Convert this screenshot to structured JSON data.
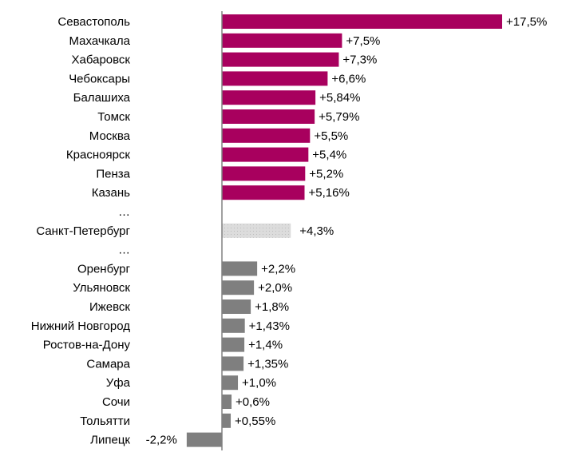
{
  "chart_data": {
    "type": "bar",
    "orientation": "horizontal",
    "title": "",
    "xlabel": "",
    "ylabel": "",
    "xlim": [
      -2.2,
      17.5
    ],
    "grid": false,
    "colors": {
      "top": "#A8005E",
      "bottom": "#7F7F7F",
      "highlight": "#D9D9D9",
      "axis": "#808080"
    },
    "rows": [
      {
        "category": "Севастополь",
        "value": 17.5,
        "label": "+17,5%",
        "group": "top"
      },
      {
        "category": "Махачкала",
        "value": 7.5,
        "label": "+7,5%",
        "group": "top"
      },
      {
        "category": "Хабаровск",
        "value": 7.3,
        "label": "+7,3%",
        "group": "top"
      },
      {
        "category": "Чебоксары",
        "value": 6.6,
        "label": "+6,6%",
        "group": "top"
      },
      {
        "category": "Балашиха",
        "value": 5.84,
        "label": "+5,84%",
        "group": "top"
      },
      {
        "category": "Томск",
        "value": 5.79,
        "label": "+5,79%",
        "group": "top"
      },
      {
        "category": "Москва",
        "value": 5.5,
        "label": "+5,5%",
        "group": "top"
      },
      {
        "category": "Красноярск",
        "value": 5.4,
        "label": "+5,4%",
        "group": "top"
      },
      {
        "category": "Пенза",
        "value": 5.2,
        "label": "+5,2%",
        "group": "top"
      },
      {
        "category": "Казань",
        "value": 5.16,
        "label": "+5,16%",
        "group": "top"
      },
      {
        "category": "…",
        "value": null,
        "label": "",
        "group": "gap"
      },
      {
        "category": "Санкт-Петербург",
        "value": 4.3,
        "label": "+4,3%",
        "group": "highlight"
      },
      {
        "category": "…",
        "value": null,
        "label": "",
        "group": "gap"
      },
      {
        "category": "Оренбург",
        "value": 2.2,
        "label": "+2,2%",
        "group": "bottom"
      },
      {
        "category": "Ульяновск",
        "value": 2.0,
        "label": "+2,0%",
        "group": "bottom"
      },
      {
        "category": "Ижевск",
        "value": 1.8,
        "label": "+1,8%",
        "group": "bottom"
      },
      {
        "category": "Нижний Новгород",
        "value": 1.43,
        "label": "+1,43%",
        "group": "bottom"
      },
      {
        "category": "Ростов-на-Дону",
        "value": 1.4,
        "label": "+1,4%",
        "group": "bottom"
      },
      {
        "category": "Самара",
        "value": 1.35,
        "label": "+1,35%",
        "group": "bottom"
      },
      {
        "category": "Уфа",
        "value": 1.0,
        "label": "+1,0%",
        "group": "bottom"
      },
      {
        "category": "Сочи",
        "value": 0.6,
        "label": "+0,6%",
        "group": "bottom"
      },
      {
        "category": "Тольятти",
        "value": 0.55,
        "label": "+0,55%",
        "group": "bottom"
      },
      {
        "category": "Липецк",
        "value": -2.2,
        "label": "-2,2%",
        "group": "bottom"
      }
    ]
  }
}
